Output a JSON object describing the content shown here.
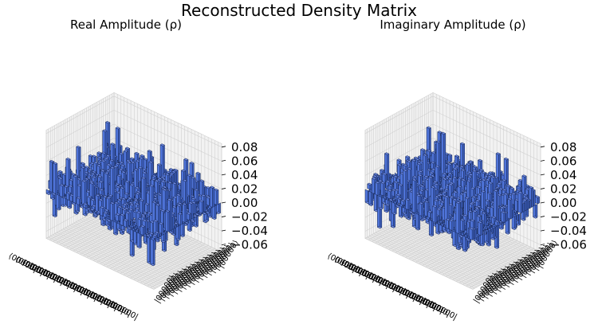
{
  "figure": {
    "title": "Reconstructed Density Matrix"
  },
  "colors": {
    "bar_fill": "#4f74d9",
    "bar_edge": "#1a2a55",
    "pane": "#f2f2f2",
    "pane_floor": "#e9e9e9",
    "grid": "#cfcfcf"
  },
  "chart_data": [
    {
      "type": "bar3d",
      "title": "Real Amplitude (ρ)",
      "zlim": [
        -0.07,
        0.085
      ],
      "zticks": [
        "0.08",
        "0.06",
        "0.04",
        "0.02",
        "0.00",
        "−0.02",
        "−0.04",
        "−0.06"
      ],
      "ztick_values": [
        0.08,
        0.06,
        0.04,
        0.02,
        0.0,
        -0.02,
        -0.04,
        -0.06
      ],
      "grid_size": 32,
      "value_range_approx": [
        -0.06,
        0.05
      ],
      "basis_labels_visible": "dense overlapping row and column basis-state labels"
    },
    {
      "type": "bar3d",
      "title": "Imaginary Amplitude (ρ)",
      "zlim": [
        -0.07,
        0.085
      ],
      "zticks": [
        "0.08",
        "0.06",
        "0.04",
        "0.02",
        "0.00",
        "−0.02",
        "−0.04",
        "−0.06"
      ],
      "ztick_values": [
        0.08,
        0.06,
        0.04,
        0.02,
        0.0,
        -0.02,
        -0.04,
        -0.06
      ],
      "grid_size": 32,
      "value_range_approx": [
        -0.06,
        0.07
      ],
      "basis_labels_visible": "dense overlapping row and column basis-state labels"
    }
  ]
}
